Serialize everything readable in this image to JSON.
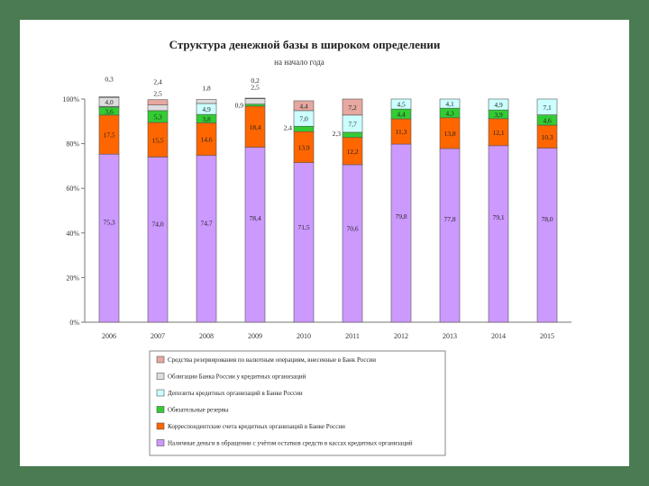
{
  "chart_data": {
    "type": "bar",
    "stacked": true,
    "title": "Структура денежной базы в широком определении",
    "subtitle": "на начало года",
    "xlabel": "",
    "ylabel": "",
    "ylim": [
      0,
      100
    ],
    "yticks": [
      "0%",
      "20%",
      "40%",
      "60%",
      "80%",
      "100%"
    ],
    "categories": [
      "2006",
      "2007",
      "2008",
      "2009",
      "2010",
      "2011",
      "2012",
      "2013",
      "2014",
      "2015"
    ],
    "series": [
      {
        "name": "Наличные деньги в обращении с учётом остатков средств в кассах кредитных организаций",
        "color": "#cc99ff",
        "values": [
          75.3,
          74.0,
          74.7,
          78.4,
          71.5,
          70.6,
          79.8,
          77.8,
          79.1,
          78.0
        ],
        "labels": [
          "75,3",
          "74,0",
          "74,7",
          "78,4",
          "71,5",
          "70,6",
          "79,8",
          "77,8",
          "79,1",
          "78,0"
        ]
      },
      {
        "name": "Корреспондентские счета кредитных организаций в Банке России",
        "color": "#ff6600",
        "values": [
          17.5,
          15.5,
          14.6,
          18.4,
          13.9,
          12.2,
          11.3,
          13.8,
          12.1,
          10.3
        ],
        "labels": [
          "17,5",
          "15,5",
          "14,6",
          "18,4",
          "13,9",
          "12,2",
          "11,3",
          "13,8",
          "12,1",
          "10,3"
        ]
      },
      {
        "name": "Обязательные резервы",
        "color": "#33cc33",
        "values": [
          3.6,
          5.3,
          3.8,
          0.9,
          2.4,
          2.3,
          4.4,
          4.3,
          3.9,
          4.6
        ],
        "labels": [
          "3,6",
          "5,3",
          "3,8",
          "0,9",
          "2,4",
          "2,3",
          "4,4",
          "4,3",
          "3,9",
          "4,6"
        ]
      },
      {
        "name": "Депозиты кредитных организаций в Банке России",
        "color": "#ccffff",
        "values": [
          0.3,
          0.0,
          4.9,
          0.0,
          7.0,
          7.7,
          4.5,
          4.1,
          4.9,
          7.1
        ],
        "labels": [
          "0,3",
          "",
          "4,9",
          "",
          "7,0",
          "7,7",
          "4,5",
          "4,1",
          "4,9",
          "7,1"
        ]
      },
      {
        "name": "Облигации Банка России у кредитных организаций",
        "color": "#dddddd",
        "values": [
          4.0,
          2.5,
          1.8,
          2.5,
          0.0,
          0.0,
          0.0,
          0.0,
          0.0,
          0.0
        ],
        "labels": [
          "4,0",
          "2,5",
          "1,8",
          "2,5",
          "",
          "",
          "",
          "",
          "",
          ""
        ]
      },
      {
        "name": "Средства резервирования по валютным операциям, внесенные в Банк России",
        "color": "#e6a8a0",
        "values": [
          0.3,
          2.4,
          0.0,
          0.2,
          4.4,
          7.2,
          0.0,
          0.0,
          0.0,
          0.0
        ],
        "labels": [
          "0,3",
          "2,4",
          "",
          "0,2",
          "4,4",
          "7,2",
          "",
          "",
          "",
          ""
        ]
      }
    ],
    "legend": "bottom",
    "legend_order": [
      5,
      4,
      3,
      2,
      1,
      0
    ],
    "grid": false
  }
}
